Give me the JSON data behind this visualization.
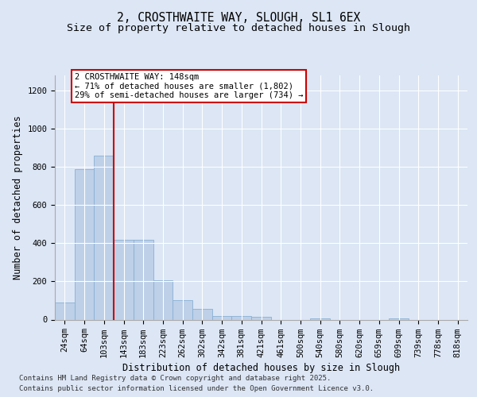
{
  "title1": "2, CROSTHWAITE WAY, SLOUGH, SL1 6EX",
  "title2": "Size of property relative to detached houses in Slough",
  "xlabel": "Distribution of detached houses by size in Slough",
  "ylabel": "Number of detached properties",
  "categories": [
    "24sqm",
    "64sqm",
    "103sqm",
    "143sqm",
    "183sqm",
    "223sqm",
    "262sqm",
    "302sqm",
    "342sqm",
    "381sqm",
    "421sqm",
    "461sqm",
    "500sqm",
    "540sqm",
    "580sqm",
    "620sqm",
    "659sqm",
    "699sqm",
    "739sqm",
    "778sqm",
    "818sqm"
  ],
  "values": [
    90,
    790,
    860,
    420,
    420,
    205,
    100,
    55,
    20,
    20,
    15,
    0,
    0,
    8,
    0,
    0,
    0,
    8,
    0,
    0,
    0
  ],
  "bar_color": "#bdd0e8",
  "bar_edge_color": "#8aafd4",
  "vline_x": 2.5,
  "vline_color": "#cc0000",
  "property_label": "2 CROSTHWAITE WAY: 148sqm",
  "annotation_line1": "← 71% of detached houses are smaller (1,802)",
  "annotation_line2": "29% of semi-detached houses are larger (734) →",
  "annotation_box_facecolor": "#ffffff",
  "annotation_box_edgecolor": "#cc0000",
  "ylim": [
    0,
    1280
  ],
  "yticks": [
    0,
    200,
    400,
    600,
    800,
    1000,
    1200
  ],
  "footer1": "Contains HM Land Registry data © Crown copyright and database right 2025.",
  "footer2": "Contains public sector information licensed under the Open Government Licence v3.0.",
  "bg_color": "#dce6f5",
  "plot_bg_color": "#dce6f5",
  "grid_color": "#ffffff",
  "title_fontsize": 10.5,
  "subtitle_fontsize": 9.5,
  "axis_label_fontsize": 8.5,
  "tick_fontsize": 7.5,
  "annotation_fontsize": 7.5,
  "footer_fontsize": 6.5
}
